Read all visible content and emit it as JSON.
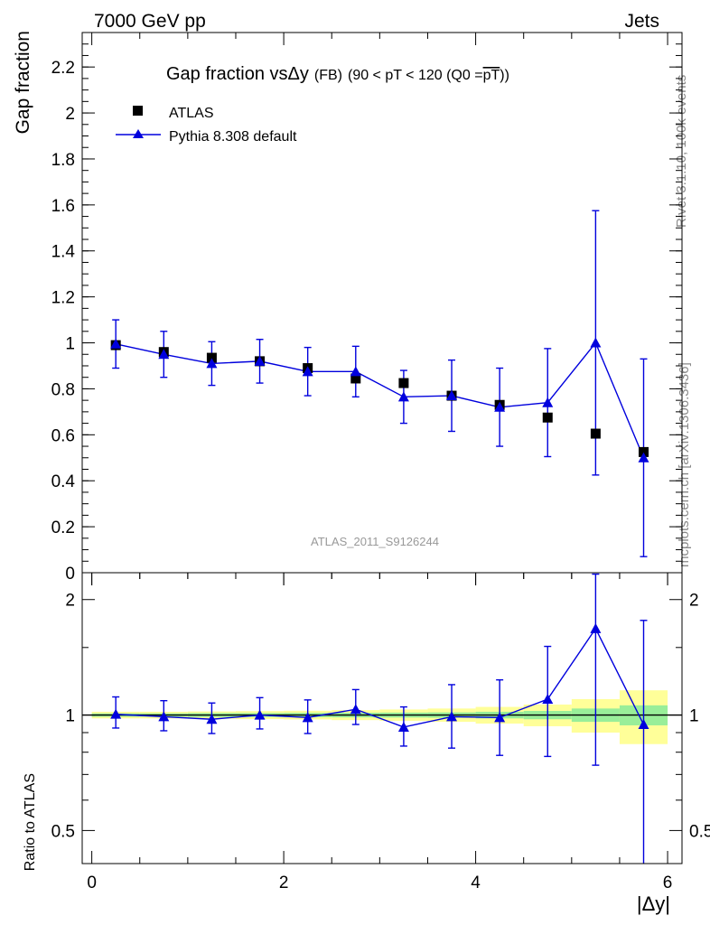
{
  "header": {
    "left": "7000 GeV pp",
    "right": "Jets"
  },
  "title": {
    "main": "Gap fraction vs",
    "delta": "Δy",
    "small": "(FB)",
    "range": "(90 < pT < 120 (Q0 =",
    "pt": "pT",
    "close": "))"
  },
  "legend": {
    "data_label": "ATLAS",
    "mc_label": "Pythia 8.308 default"
  },
  "watermark": "ATLAS_2011_S9126244",
  "side_text": {
    "top": "Rivet 3.1.10,  100k events",
    "bottom": "mcplots.cern.ch [arXiv:1306.3436]"
  },
  "axes": {
    "ylabel_main": "Gap fraction",
    "ylabel_ratio": "Ratio to ATLAS",
    "xlabel": "|Δy|"
  },
  "colors": {
    "mc": "#0000dd",
    "data": "#000000",
    "band_inner": "#99ee99",
    "band_outer": "#ffff99"
  },
  "chart_data": [
    {
      "type": "scatter",
      "name": "main",
      "xlim": [
        -0.1,
        6.15
      ],
      "ylim": [
        0,
        2.35
      ],
      "xticks": [
        0,
        2,
        4,
        6
      ],
      "yticks": [
        0,
        0.2,
        0.4,
        0.6,
        0.8,
        1,
        1.2,
        1.4,
        1.6,
        1.8,
        2,
        2.2
      ],
      "x": [
        0.25,
        0.75,
        1.25,
        1.75,
        2.25,
        2.75,
        3.25,
        3.75,
        4.25,
        4.75,
        5.25,
        5.75
      ],
      "series": [
        {
          "name": "ATLAS",
          "marker": "square",
          "values": [
            0.99,
            0.96,
            0.935,
            0.92,
            0.89,
            0.845,
            0.825,
            0.77,
            0.73,
            0.675,
            0.605,
            0.525
          ],
          "err": [
            0.015,
            0.015,
            0.015,
            0.015,
            0.015,
            0.015,
            0.015,
            0.015,
            0.015,
            0.015,
            0.015,
            0.015
          ]
        },
        {
          "name": "Pythia 8.308 default",
          "marker": "triangle",
          "values": [
            0.995,
            0.95,
            0.91,
            0.92,
            0.875,
            0.875,
            0.765,
            0.77,
            0.72,
            0.74,
            1.0,
            0.5
          ],
          "err": [
            0.105,
            0.1,
            0.095,
            0.095,
            0.105,
            0.11,
            0.115,
            0.155,
            0.17,
            0.235,
            0.575,
            0.43
          ]
        }
      ]
    },
    {
      "type": "scatter",
      "name": "ratio",
      "scale": "log",
      "xlim": [
        -0.1,
        6.15
      ],
      "ylim": [
        0.41,
        2.35
      ],
      "yticks": [
        0.5,
        1,
        2
      ],
      "x": [
        0.25,
        0.75,
        1.25,
        1.75,
        2.25,
        2.75,
        3.25,
        3.75,
        4.25,
        4.75,
        5.25,
        5.75
      ],
      "values": [
        1.005,
        0.99,
        0.975,
        1.0,
        0.985,
        1.035,
        0.93,
        0.99,
        0.985,
        1.1,
        1.68,
        0.945
      ],
      "err_low": [
        0.08,
        0.08,
        0.08,
        0.08,
        0.09,
        0.09,
        0.1,
        0.17,
        0.2,
        0.32,
        0.94,
        0.58
      ],
      "err_high": [
        0.11,
        0.1,
        0.1,
        0.11,
        0.11,
        0.13,
        0.12,
        0.21,
        0.25,
        0.41,
        0.65,
        0.82
      ],
      "band_edges": [
        0,
        0.5,
        1,
        1.5,
        2,
        2.5,
        3,
        3.5,
        4,
        4.5,
        5,
        5.5,
        6
      ],
      "band_inner": [
        0.01,
        0.01,
        0.012,
        0.012,
        0.013,
        0.014,
        0.015,
        0.016,
        0.02,
        0.025,
        0.04,
        0.06
      ],
      "band_outer": [
        0.02,
        0.02,
        0.022,
        0.024,
        0.026,
        0.03,
        0.034,
        0.04,
        0.05,
        0.065,
        0.1,
        0.16
      ]
    }
  ]
}
